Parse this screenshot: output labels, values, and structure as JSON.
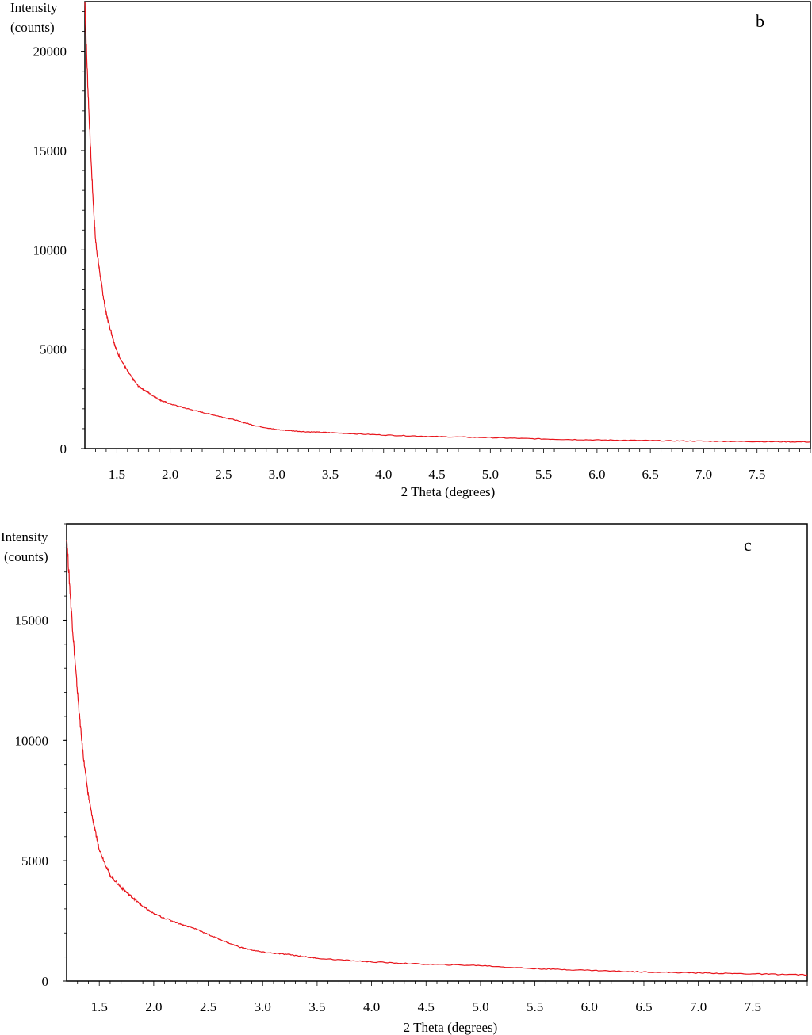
{
  "chart_data": [
    {
      "type": "line",
      "panel_label": "b",
      "xlabel": "2 Theta (degrees)",
      "ylabel_line1": "Intensity",
      "ylabel_line2": "(counts)",
      "xlim": [
        1.2,
        8.0
      ],
      "ylim": [
        0,
        22500
      ],
      "xticks": [
        "1.5",
        "2.0",
        "2.5",
        "3.0",
        "3.5",
        "4.0",
        "4.5",
        "5.0",
        "5.5",
        "6.0",
        "6.5",
        "7.0",
        "7.5"
      ],
      "yticks": [
        "0",
        "5000",
        "10000",
        "15000",
        "20000"
      ],
      "line_color": "#e8141b",
      "grid": false,
      "series": [
        {
          "x": [
            1.2,
            1.25,
            1.3,
            1.35,
            1.4,
            1.45,
            1.5,
            1.6,
            1.7,
            1.8,
            1.9,
            2.0,
            2.2,
            2.4,
            2.6,
            2.8,
            3.0,
            3.25,
            3.5,
            4.0,
            4.5,
            5.0,
            5.5,
            6.0,
            6.5,
            7.0,
            7.5,
            8.0
          ],
          "y": [
            22500,
            15500,
            10500,
            8500,
            6800,
            5800,
            4900,
            3900,
            3150,
            2800,
            2450,
            2250,
            1950,
            1700,
            1450,
            1150,
            950,
            850,
            800,
            680,
            600,
            550,
            480,
            430,
            400,
            370,
            350,
            330
          ]
        }
      ]
    },
    {
      "type": "line",
      "panel_label": "c",
      "xlabel": "2 Theta (degrees)",
      "ylabel_line1": "Intensity",
      "ylabel_line2": "(counts)",
      "xlim": [
        1.2,
        8.0
      ],
      "ylim": [
        0,
        19000
      ],
      "xticks": [
        "1.5",
        "2.0",
        "2.5",
        "3.0",
        "3.5",
        "4.0",
        "4.5",
        "5.0",
        "5.5",
        "6.0",
        "6.5",
        "7.0",
        "7.5"
      ],
      "yticks": [
        "0",
        "5000",
        "10000",
        "15000"
      ],
      "line_color": "#e8141b",
      "grid": false,
      "series": [
        {
          "x": [
            1.2,
            1.25,
            1.3,
            1.35,
            1.4,
            1.45,
            1.5,
            1.6,
            1.7,
            1.8,
            1.9,
            2.0,
            2.2,
            2.4,
            2.6,
            2.8,
            3.0,
            3.25,
            3.5,
            4.0,
            4.5,
            5.0,
            5.5,
            6.0,
            6.5,
            7.0,
            7.5,
            8.0
          ],
          "y": [
            18500,
            15000,
            12000,
            9500,
            7700,
            6500,
            5500,
            4400,
            3900,
            3500,
            3100,
            2800,
            2450,
            2150,
            1750,
            1400,
            1200,
            1100,
            950,
            800,
            700,
            650,
            520,
            450,
            380,
            340,
            300,
            260
          ]
        }
      ]
    }
  ]
}
